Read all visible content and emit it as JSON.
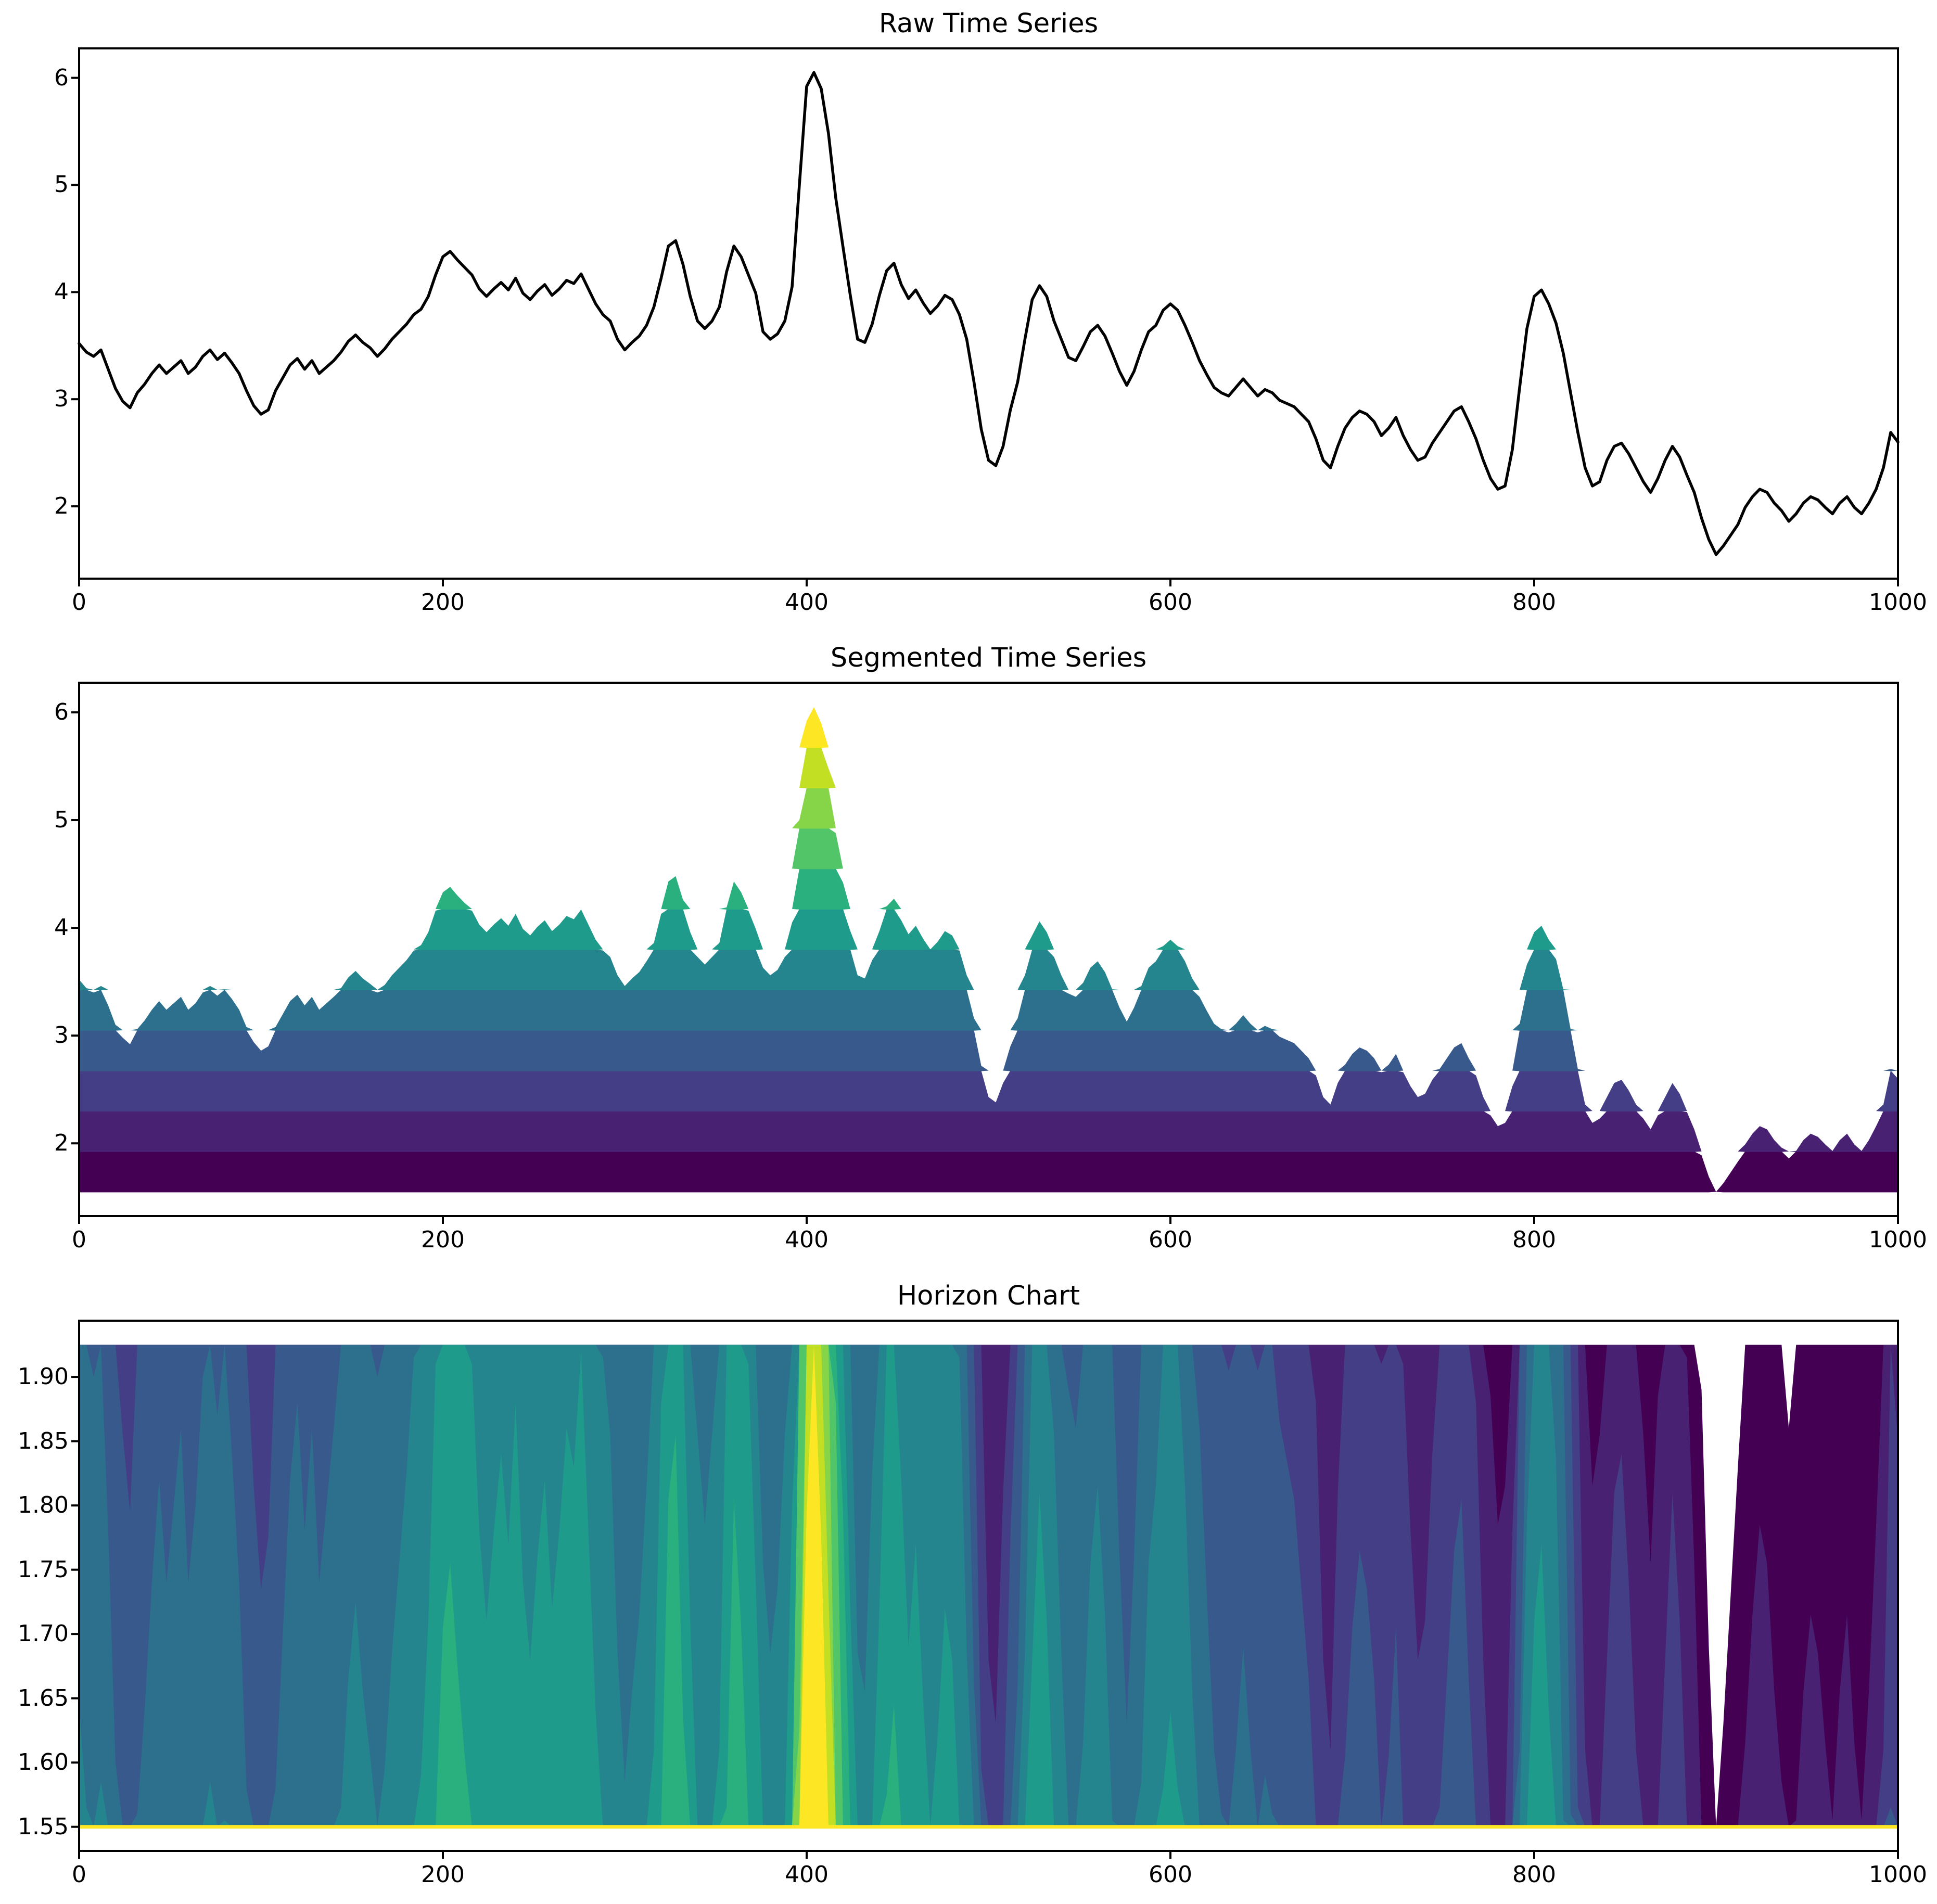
{
  "chart_data": {
    "x": {
      "start": 0,
      "step": 4,
      "end": 1000
    },
    "values": [
      3.52,
      3.44,
      3.4,
      3.46,
      3.28,
      3.1,
      2.98,
      2.92,
      3.06,
      3.14,
      3.24,
      3.32,
      3.24,
      3.3,
      3.36,
      3.24,
      3.3,
      3.4,
      3.46,
      3.37,
      3.43,
      3.34,
      3.24,
      3.08,
      2.94,
      2.86,
      2.9,
      3.08,
      3.2,
      3.32,
      3.38,
      3.28,
      3.36,
      3.24,
      3.3,
      3.36,
      3.44,
      3.54,
      3.6,
      3.53,
      3.48,
      3.4,
      3.47,
      3.56,
      3.63,
      3.7,
      3.79,
      3.84,
      3.96,
      4.16,
      4.33,
      4.38,
      4.3,
      4.23,
      4.16,
      4.03,
      3.96,
      4.03,
      4.09,
      4.02,
      4.13,
      3.99,
      3.93,
      4.01,
      4.07,
      3.97,
      4.03,
      4.11,
      4.08,
      4.17,
      4.03,
      3.89,
      3.79,
      3.73,
      3.56,
      3.46,
      3.53,
      3.59,
      3.69,
      3.86,
      4.13,
      4.43,
      4.48,
      4.26,
      3.96,
      3.73,
      3.66,
      3.73,
      3.86,
      4.19,
      4.43,
      4.33,
      4.16,
      3.99,
      3.63,
      3.56,
      3.61,
      3.73,
      4.05,
      5.0,
      5.92,
      6.05,
      5.9,
      5.48,
      4.88,
      4.42,
      3.97,
      3.56,
      3.53,
      3.7,
      3.97,
      4.2,
      4.27,
      4.07,
      3.94,
      4.02,
      3.9,
      3.8,
      3.87,
      3.97,
      3.93,
      3.79,
      3.56,
      3.16,
      2.72,
      2.43,
      2.38,
      2.56,
      2.9,
      3.16,
      3.56,
      3.93,
      4.06,
      3.96,
      3.73,
      3.56,
      3.39,
      3.36,
      3.49,
      3.63,
      3.69,
      3.59,
      3.43,
      3.26,
      3.13,
      3.26,
      3.46,
      3.63,
      3.69,
      3.83,
      3.89,
      3.83,
      3.69,
      3.53,
      3.36,
      3.23,
      3.11,
      3.06,
      3.03,
      3.11,
      3.19,
      3.11,
      3.03,
      3.09,
      3.06,
      2.99,
      2.96,
      2.93,
      2.86,
      2.79,
      2.63,
      2.43,
      2.36,
      2.56,
      2.73,
      2.83,
      2.89,
      2.86,
      2.79,
      2.66,
      2.73,
      2.83,
      2.66,
      2.53,
      2.43,
      2.46,
      2.59,
      2.69,
      2.79,
      2.89,
      2.93,
      2.79,
      2.63,
      2.43,
      2.26,
      2.16,
      2.19,
      2.53,
      3.11,
      3.66,
      3.96,
      4.02,
      3.89,
      3.71,
      3.43,
      3.06,
      2.69,
      2.36,
      2.19,
      2.23,
      2.43,
      2.56,
      2.59,
      2.49,
      2.36,
      2.23,
      2.13,
      2.26,
      2.43,
      2.56,
      2.46,
      2.29,
      2.13,
      1.89,
      1.69,
      1.55,
      1.63,
      1.73,
      1.83,
      1.99,
      2.09,
      2.16,
      2.13,
      2.03,
      1.96,
      1.86,
      1.93,
      2.03,
      2.09,
      2.06,
      1.99,
      1.93,
      2.03,
      2.09,
      1.99,
      1.93,
      2.03,
      2.16,
      2.36,
      2.69,
      2.6
    ],
    "bands": {
      "min": 1.55,
      "max": 6.05,
      "count": 12,
      "step": 0.375,
      "viridis_colors": [
        "#440154",
        "#482173",
        "#433e85",
        "#38598c",
        "#2d708e",
        "#25858e",
        "#1e9b8a",
        "#2ab07f",
        "#52c569",
        "#86d549",
        "#c2df23",
        "#fde725"
      ]
    },
    "charts": [
      {
        "type": "line",
        "title": "Raw Time Series",
        "line_color": "#000000",
        "xlim": [
          0,
          1000
        ],
        "ylim": [
          1.325,
          6.275
        ],
        "xticks": [
          0,
          200,
          400,
          600,
          800,
          1000
        ],
        "xtick_labels": [
          "0",
          "200",
          "400",
          "600",
          "800",
          "1000"
        ],
        "yticks": [
          2,
          3,
          4,
          5,
          6
        ],
        "ytick_labels": [
          "2",
          "3",
          "4",
          "5",
          "6"
        ],
        "grid": false,
        "legend": "none"
      },
      {
        "type": "area",
        "title": "Segmented Time Series",
        "xlim": [
          0,
          1000
        ],
        "ylim": [
          1.325,
          6.275
        ],
        "xticks": [
          0,
          200,
          400,
          600,
          800,
          1000
        ],
        "xtick_labels": [
          "0",
          "200",
          "400",
          "600",
          "800",
          "1000"
        ],
        "yticks": [
          2,
          3,
          4,
          5,
          6
        ],
        "ytick_labels": [
          "2",
          "3",
          "4",
          "5",
          "6"
        ],
        "grid": false,
        "legend": "none"
      },
      {
        "type": "horizon",
        "title": "Horizon Chart",
        "xlim": [
          0,
          1000
        ],
        "ylim": [
          1.53125,
          1.94375
        ],
        "baseline": 1.55,
        "baseline_color": "#fde725",
        "xticks": [
          0,
          200,
          400,
          600,
          800,
          1000
        ],
        "xtick_labels": [
          "0",
          "200",
          "400",
          "600",
          "800",
          "1000"
        ],
        "yticks": [
          1.55,
          1.6,
          1.65,
          1.7,
          1.75,
          1.8,
          1.85,
          1.9
        ],
        "ytick_labels": [
          "1.55",
          "1.60",
          "1.65",
          "1.70",
          "1.75",
          "1.80",
          "1.85",
          "1.90"
        ],
        "grid": false,
        "legend": "none"
      }
    ]
  }
}
